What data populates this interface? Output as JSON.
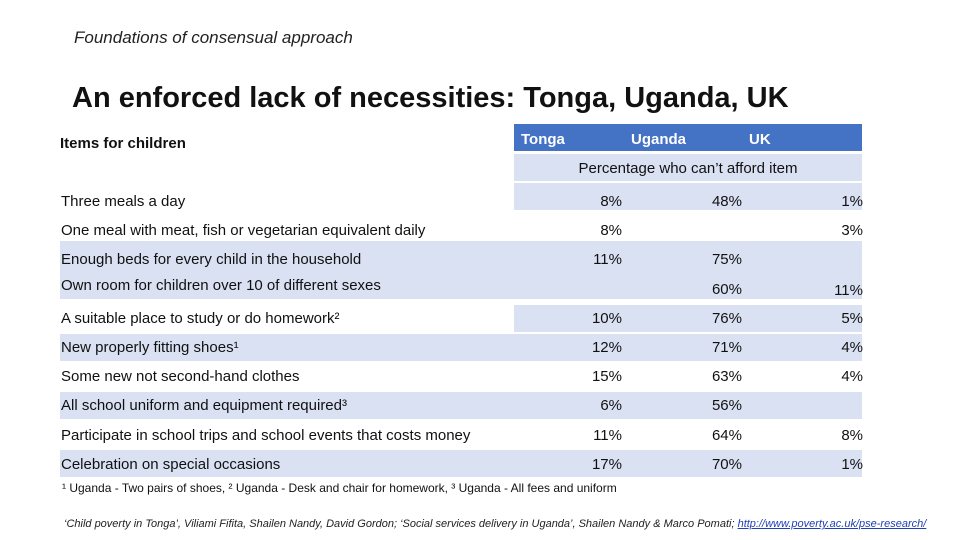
{
  "slide": {
    "subtitle": "Foundations of consensual approach",
    "title": "An enforced lack of necessities: Tonga, Uganda, UK",
    "items_label": "Items for children",
    "columns": [
      "Tonga",
      "Uganda",
      "UK"
    ],
    "subheader": "Percentage who can’t afford item",
    "rows": [
      {
        "item": "Three meals a day",
        "tonga": "8%",
        "uganda": "48%",
        "uk": "1%"
      },
      {
        "item": "One meal with meat, fish or vegetarian equivalent daily",
        "tonga": "8%",
        "uganda": "",
        "uk": "3%"
      },
      {
        "item": "Enough beds for every child in the household",
        "tonga": "11%",
        "uganda": "75%",
        "uk": ""
      },
      {
        "item": "Own room for children over 10 of different sexes",
        "tonga": "",
        "uganda": "60%",
        "uk": "11%"
      },
      {
        "item": "A suitable place to study or do homework²",
        "tonga": "10%",
        "uganda": "76%",
        "uk": "5%"
      },
      {
        "item": "New properly fitting shoes¹",
        "tonga": "12%",
        "uganda": "71%",
        "uk": "4%"
      },
      {
        "item": "Some new not second-hand clothes",
        "tonga": "15%",
        "uganda": "63%",
        "uk": "4%"
      },
      {
        "item": "All school uniform and equipment required³",
        "tonga": "6%",
        "uganda": "56%",
        "uk": ""
      },
      {
        "item": "Participate in school trips and school events that costs money",
        "tonga": "11%",
        "uganda": "64%",
        "uk": "8%"
      },
      {
        "item": "Celebration on special occasions",
        "tonga": "17%",
        "uganda": "70%",
        "uk": "1%"
      }
    ],
    "footnote": "¹ Uganda - Two pairs of shoes, ² Uganda - Desk and chair for homework, ³ Uganda  - All fees and uniform",
    "source_text": "‘Child poverty in Tonga’, Viliami Fifita, Shailen Nandy, David Gordon; ‘Social services delivery in Uganda’, Shailen Nandy & Marco Pomati;",
    "source_link": "http://www.poverty.ac.uk/pse-research/",
    "colors": {
      "header_blue": "#4472c4",
      "row_shade": "#d9e1f2"
    }
  }
}
